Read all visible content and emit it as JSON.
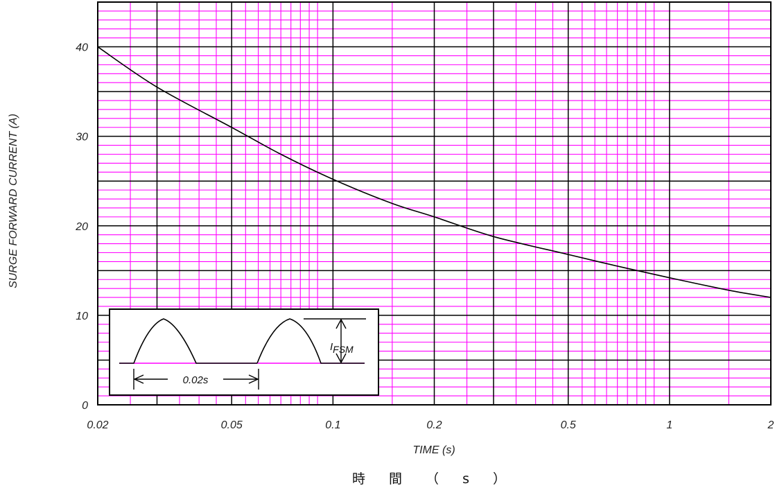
{
  "colors": {
    "major_grid": "#000000",
    "minor_grid": "#ff00ff",
    "curve": "#000000",
    "inset_baseline": "#ff00ff",
    "background": "#ffffff"
  },
  "chart_data": {
    "type": "line",
    "title": "",
    "xlabel": "TIME (s)",
    "xlabel_secondary": "時 間 （ s ）",
    "ylabel": "SURGE FORWARD CURRENT (A)",
    "x_scale": "log",
    "xlim": [
      0.02,
      2
    ],
    "ylim": [
      0,
      45
    ],
    "grid": true,
    "x_tick_labels": [
      "0.02",
      "0.05",
      "0.1",
      "0.2",
      "0.5",
      "1",
      "2"
    ],
    "y_tick_labels": [
      "0",
      "10",
      "20",
      "30",
      "40"
    ],
    "series": [
      {
        "x": [
          0.02,
          0.03,
          0.05,
          0.07,
          0.1,
          0.15,
          0.2,
          0.3,
          0.5,
          0.7,
          1,
          1.5,
          2
        ],
        "y": [
          40,
          35.5,
          31,
          28,
          25.2,
          22.5,
          21,
          18.8,
          16.8,
          15.5,
          14.2,
          12.8,
          12
        ]
      }
    ],
    "inset": {
      "period_label": "0.02s",
      "current_label_main": "I",
      "current_label_sub": "FSM"
    }
  }
}
